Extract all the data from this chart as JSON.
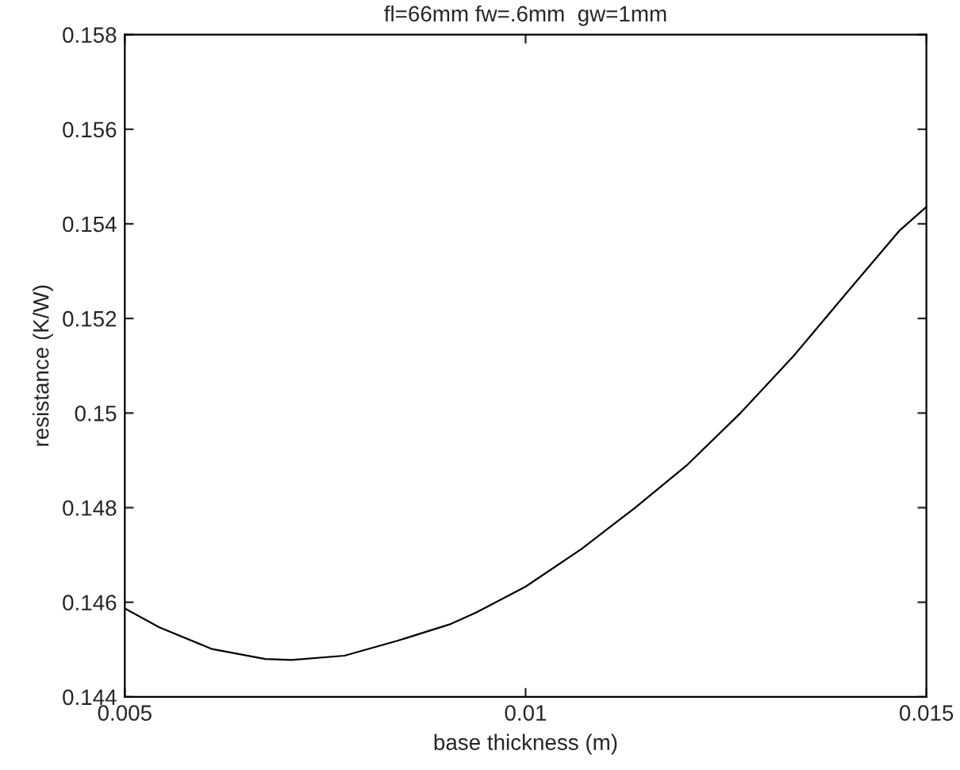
{
  "chart_data": {
    "type": "line",
    "title": "fl=66mm fw=.6mm  gw=1mm",
    "xlabel": "base thickness (m)",
    "ylabel": "resistance (K/W)",
    "x": [
      0.005,
      0.00543,
      0.00609,
      0.00675,
      0.00708,
      0.00774,
      0.00839,
      0.00905,
      0.00938,
      0.01,
      0.0107,
      0.01136,
      0.01202,
      0.01268,
      0.01334,
      0.014,
      0.01466,
      0.015
    ],
    "series": [
      {
        "color": "#000000",
        "values": [
          0.14587,
          0.14547,
          0.14501,
          0.1448,
          0.14478,
          0.14487,
          0.14518,
          0.14553,
          0.14578,
          0.14633,
          0.14713,
          0.14799,
          0.14891,
          0.15,
          0.1512,
          0.15253,
          0.15385,
          0.15436
        ]
      }
    ],
    "xlim": [
      0.005,
      0.015
    ],
    "xticks": [
      0.005,
      0.01,
      0.015
    ],
    "ylim": [
      0.144,
      0.158
    ],
    "yticks": [
      0.144,
      0.146,
      0.148,
      0.15,
      0.152,
      0.154,
      0.156,
      0.158
    ],
    "grid": false,
    "legend": false,
    "marker": "none",
    "line_style": "solid"
  }
}
